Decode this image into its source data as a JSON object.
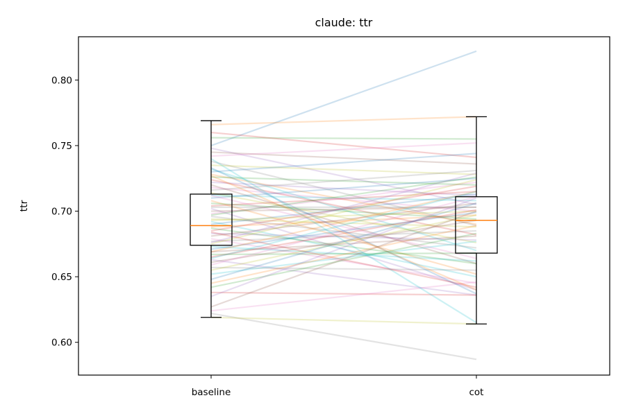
{
  "chart_data": {
    "type": "box",
    "title": "claude: ttr",
    "xlabel": "",
    "ylabel": "ttr",
    "categories": [
      "baseline",
      "cot"
    ],
    "ylim": [
      0.575,
      0.833
    ],
    "yticks": [
      0.6,
      0.65,
      0.7,
      0.75,
      0.8
    ],
    "ytick_labels": [
      "0.60",
      "0.65",
      "0.70",
      "0.75",
      "0.80"
    ],
    "boxes": [
      {
        "category": "baseline",
        "whisker_low": 0.619,
        "q1": 0.674,
        "median": 0.689,
        "q3": 0.713,
        "whisker_high": 0.769
      },
      {
        "category": "cot",
        "whisker_low": 0.614,
        "q1": 0.668,
        "median": 0.693,
        "q3": 0.711,
        "whisker_high": 0.772
      }
    ],
    "pairs": [
      [
        0.75,
        0.822
      ],
      [
        0.766,
        0.772
      ],
      [
        0.756,
        0.755
      ],
      [
        0.76,
        0.741
      ],
      [
        0.748,
        0.705
      ],
      [
        0.745,
        0.736
      ],
      [
        0.742,
        0.752
      ],
      [
        0.738,
        0.689
      ],
      [
        0.735,
        0.728
      ],
      [
        0.732,
        0.67
      ],
      [
        0.73,
        0.744
      ],
      [
        0.728,
        0.69
      ],
      [
        0.726,
        0.72
      ],
      [
        0.724,
        0.682
      ],
      [
        0.722,
        0.712
      ],
      [
        0.72,
        0.66
      ],
      [
        0.718,
        0.7
      ],
      [
        0.716,
        0.731
      ],
      [
        0.714,
        0.676
      ],
      [
        0.712,
        0.708
      ],
      [
        0.71,
        0.725
      ],
      [
        0.708,
        0.652
      ],
      [
        0.706,
        0.694
      ],
      [
        0.704,
        0.715
      ],
      [
        0.702,
        0.64
      ],
      [
        0.7,
        0.703
      ],
      [
        0.698,
        0.722
      ],
      [
        0.696,
        0.672
      ],
      [
        0.694,
        0.688
      ],
      [
        0.692,
        0.65
      ],
      [
        0.69,
        0.713
      ],
      [
        0.688,
        0.697
      ],
      [
        0.687,
        0.66
      ],
      [
        0.685,
        0.719
      ],
      [
        0.683,
        0.678
      ],
      [
        0.681,
        0.706
      ],
      [
        0.679,
        0.645
      ],
      [
        0.677,
        0.685
      ],
      [
        0.675,
        0.724
      ],
      [
        0.673,
        0.662
      ],
      [
        0.671,
        0.699
      ],
      [
        0.669,
        0.715
      ],
      [
        0.667,
        0.668
      ],
      [
        0.665,
        0.701
      ],
      [
        0.663,
        0.636
      ],
      [
        0.661,
        0.693
      ],
      [
        0.659,
        0.711
      ],
      [
        0.657,
        0.655
      ],
      [
        0.655,
        0.697
      ],
      [
        0.652,
        0.677
      ],
      [
        0.648,
        0.706
      ],
      [
        0.645,
        0.689
      ],
      [
        0.642,
        0.683
      ],
      [
        0.638,
        0.636
      ],
      [
        0.635,
        0.71
      ],
      [
        0.627,
        0.7
      ],
      [
        0.624,
        0.646
      ],
      [
        0.622,
        0.587
      ],
      [
        0.619,
        0.614
      ],
      [
        0.74,
        0.615
      ],
      [
        0.733,
        0.637
      ],
      [
        0.727,
        0.64
      ],
      [
        0.697,
        0.726
      ],
      [
        0.684,
        0.642
      ],
      [
        0.676,
        0.729
      ],
      [
        0.669,
        0.681
      ],
      [
        0.712,
        0.664
      ],
      [
        0.703,
        0.703
      ],
      [
        0.693,
        0.7
      ],
      [
        0.664,
        0.715
      ]
    ],
    "colors": [
      "#1f77b4",
      "#ff7f0e",
      "#2ca02c",
      "#d62728",
      "#9467bd",
      "#8c564b",
      "#e377c2",
      "#7f7f7f",
      "#bcbd22",
      "#17becf"
    ],
    "median_color": "#ff7f0e",
    "grid": false,
    "legend": "none"
  }
}
